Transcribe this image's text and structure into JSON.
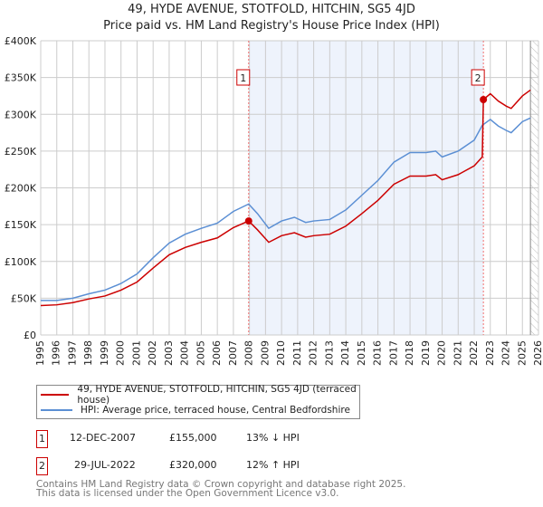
{
  "chart_data": {
    "type": "line",
    "title": "49, HYDE AVENUE, STOTFOLD, HITCHIN, SG5 4JD",
    "subtitle": "Price paid vs. HM Land Registry's House Price Index (HPI)",
    "xlim": [
      1995,
      2026
    ],
    "ylim": [
      0,
      400000
    ],
    "y_ticks": [
      {
        "v": 0,
        "label": "£0"
      },
      {
        "v": 50000,
        "label": "£50K"
      },
      {
        "v": 100000,
        "label": "£100K"
      },
      {
        "v": 150000,
        "label": "£150K"
      },
      {
        "v": 200000,
        "label": "£200K"
      },
      {
        "v": 250000,
        "label": "£250K"
      },
      {
        "v": 300000,
        "label": "£300K"
      },
      {
        "v": 350000,
        "label": "£350K"
      },
      {
        "v": 400000,
        "label": "£400K"
      }
    ],
    "x_ticks": [
      "1995",
      "1996",
      "1997",
      "1998",
      "1999",
      "2000",
      "2001",
      "2002",
      "2003",
      "2004",
      "2005",
      "2006",
      "2007",
      "2008",
      "2009",
      "2010",
      "2011",
      "2012",
      "2013",
      "2014",
      "2015",
      "2016",
      "2017",
      "2018",
      "2019",
      "2020",
      "2021",
      "2022",
      "2023",
      "2024",
      "2025",
      "2026"
    ],
    "grid": true,
    "shaded_range": [
      2007.95,
      2022.57
    ],
    "forecast_hatch_from": 2025.5,
    "series": [
      {
        "name": "49, HYDE AVENUE, STOTFOLD, HITCHIN, SG5 4JD (terraced house)",
        "color": "#cc0000",
        "x": [
          1995,
          1996,
          1997,
          1998,
          1999,
          2000,
          2001,
          2002,
          2003,
          2004,
          2005,
          2006,
          2007,
          2007.95,
          2008.5,
          2009.2,
          2010,
          2010.8,
          2011.5,
          2012,
          2013,
          2014,
          2015,
          2016,
          2017,
          2018,
          2019,
          2019.6,
          2020,
          2021,
          2022,
          2022.5,
          2022.57,
          2023,
          2023.5,
          2024,
          2024.3,
          2025,
          2025.5
        ],
        "y": [
          40000,
          41000,
          44000,
          49000,
          53000,
          61000,
          72000,
          91000,
          109000,
          119000,
          126000,
          132000,
          146000,
          155000,
          143000,
          126000,
          135000,
          139000,
          133000,
          135000,
          137000,
          148000,
          165000,
          183000,
          205000,
          216000,
          216000,
          218000,
          211000,
          218000,
          230000,
          242000,
          320000,
          328000,
          318000,
          311000,
          308000,
          325000,
          333000
        ]
      },
      {
        "name": "HPI: Average price, terraced house, Central Bedfordshire",
        "color": "#5b8fd4",
        "x": [
          1995,
          1996,
          1997,
          1998,
          1999,
          2000,
          2001,
          2002,
          2003,
          2004,
          2005,
          2006,
          2007,
          2007.95,
          2008.5,
          2009.2,
          2010,
          2010.8,
          2011.5,
          2012,
          2013,
          2014,
          2015,
          2016,
          2017,
          2018,
          2019,
          2019.6,
          2020,
          2021,
          2022,
          2022.5,
          2023,
          2023.5,
          2024,
          2024.3,
          2025,
          2025.5
        ],
        "y": [
          47000,
          47000,
          50000,
          56000,
          61000,
          70000,
          83000,
          105000,
          125000,
          137000,
          145000,
          152000,
          168000,
          178000,
          165000,
          145000,
          155000,
          160000,
          153000,
          155000,
          157000,
          170000,
          190000,
          210000,
          235000,
          248000,
          248000,
          250000,
          242000,
          250000,
          265000,
          285000,
          293000,
          284000,
          278000,
          275000,
          290000,
          295000
        ]
      }
    ],
    "annotations": [
      {
        "label": "1",
        "x": 2007.95,
        "y": 155000
      },
      {
        "label": "2",
        "x": 2022.57,
        "y": 320000
      }
    ]
  },
  "legend": {
    "red": "49, HYDE AVENUE, STOTFOLD, HITCHIN, SG5 4JD (terraced house)",
    "blue": "HPI: Average price, terraced house, Central Bedfordshire"
  },
  "transactions": [
    {
      "num": "1",
      "date": "12-DEC-2007",
      "price": "£155,000",
      "hpi": "13% ↓ HPI"
    },
    {
      "num": "2",
      "date": "29-JUL-2022",
      "price": "£320,000",
      "hpi": "12% ↑ HPI"
    }
  ],
  "footer": {
    "line1": "Contains HM Land Registry data © Crown copyright and database right 2025.",
    "line2": "This data is licensed under the Open Government Licence v3.0."
  }
}
